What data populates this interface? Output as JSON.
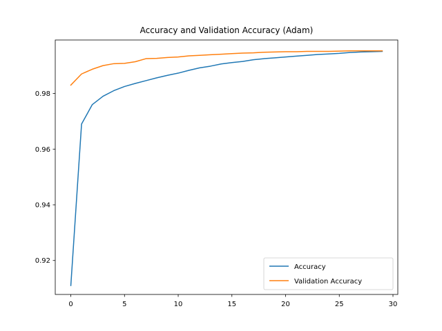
{
  "chart_data": {
    "type": "line",
    "title": "Accuracy and Validation Accuracy (Adam)",
    "xlabel": "",
    "ylabel": "",
    "xlim": [
      -1.45,
      30.45
    ],
    "ylim": [
      0.9078,
      0.9992
    ],
    "xticks": [
      0,
      5,
      10,
      15,
      20,
      25,
      30
    ],
    "yticks": [
      0.92,
      0.94,
      0.96,
      0.98
    ],
    "xtick_labels": [
      "0",
      "5",
      "10",
      "15",
      "20",
      "25",
      "30"
    ],
    "ytick_labels": [
      "0.92",
      "0.94",
      "0.96",
      "0.98"
    ],
    "grid": false,
    "legend_position": "lower-right",
    "x": [
      0,
      1,
      2,
      3,
      4,
      5,
      6,
      7,
      8,
      9,
      10,
      11,
      12,
      13,
      14,
      15,
      16,
      17,
      18,
      19,
      20,
      21,
      22,
      23,
      24,
      25,
      26,
      27,
      28,
      29
    ],
    "series": [
      {
        "name": "Accuracy",
        "color": "#1f77b4",
        "values": [
          0.911,
          0.969,
          0.976,
          0.979,
          0.981,
          0.9825,
          0.9836,
          0.9846,
          0.9856,
          0.9865,
          0.9873,
          0.9883,
          0.9892,
          0.9898,
          0.9906,
          0.9911,
          0.9915,
          0.9921,
          0.9925,
          0.9928,
          0.9931,
          0.9934,
          0.9937,
          0.994,
          0.9942,
          0.9944,
          0.9947,
          0.9949,
          0.995,
          0.9951
        ]
      },
      {
        "name": "Validation Accuracy",
        "color": "#ff7f0e",
        "values": [
          0.983,
          0.987,
          0.9887,
          0.99,
          0.9907,
          0.9908,
          0.9914,
          0.9925,
          0.9926,
          0.9929,
          0.9931,
          0.9935,
          0.9937,
          0.9939,
          0.9941,
          0.9943,
          0.9945,
          0.9946,
          0.9948,
          0.9949,
          0.995,
          0.995,
          0.9951,
          0.9951,
          0.9951,
          0.9952,
          0.9953,
          0.9953,
          0.9953,
          0.9953
        ]
      }
    ]
  }
}
